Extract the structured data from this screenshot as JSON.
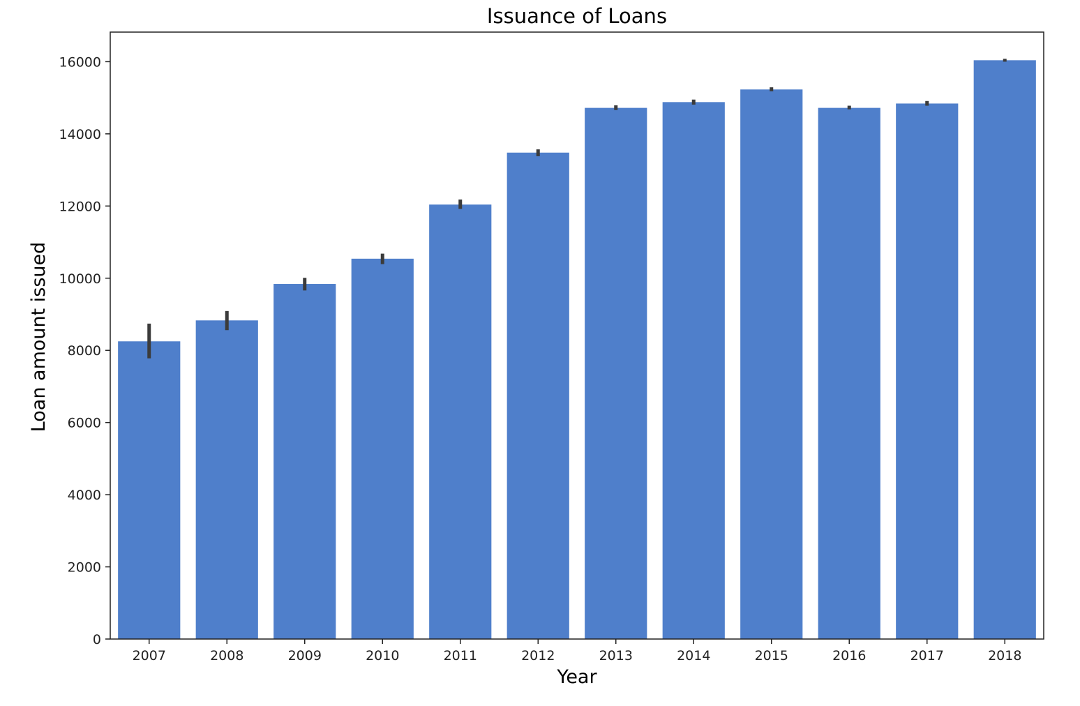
{
  "chart_data": {
    "type": "bar",
    "title": "Issuance of Loans",
    "xlabel": "Year",
    "ylabel": "Loan amount issued",
    "categories": [
      "2007",
      "2008",
      "2009",
      "2010",
      "2011",
      "2012",
      "2013",
      "2014",
      "2015",
      "2016",
      "2017",
      "2018"
    ],
    "values": [
      8250,
      8830,
      9840,
      10540,
      12040,
      13480,
      14720,
      14880,
      15230,
      14720,
      14840,
      16040
    ],
    "error_bars": [
      [
        7780,
        8740
      ],
      [
        8560,
        9090
      ],
      [
        9660,
        10010
      ],
      [
        10390,
        10680
      ],
      [
        11920,
        12180
      ],
      [
        13380,
        13570
      ],
      [
        14660,
        14790
      ],
      [
        14810,
        14950
      ],
      [
        15180,
        15290
      ],
      [
        14680,
        14780
      ],
      [
        14780,
        14910
      ],
      [
        16000,
        16080
      ]
    ],
    "yticks": [
      0,
      2000,
      4000,
      6000,
      8000,
      10000,
      12000,
      14000,
      16000
    ],
    "ylim": [
      0,
      16820
    ],
    "grid": false,
    "legend": "none",
    "colors": {
      "bar": "#4f7fcb",
      "error_bar": "#3b3b3b",
      "axes": "#222222"
    }
  }
}
